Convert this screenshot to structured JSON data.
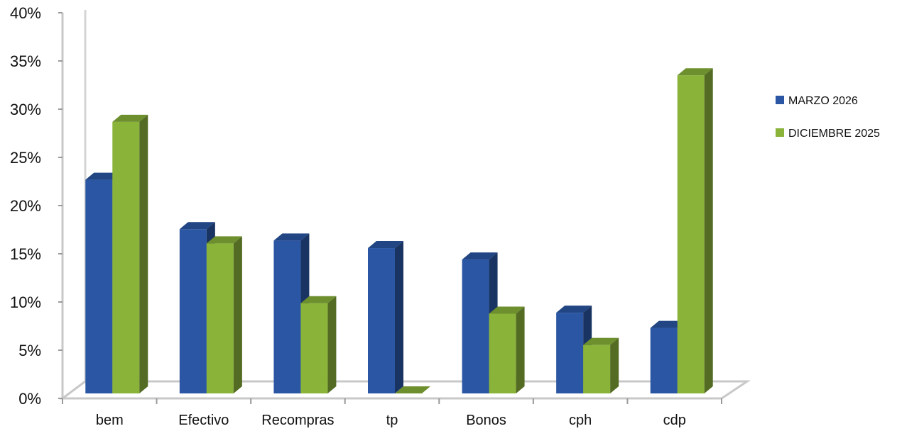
{
  "chart_data": {
    "type": "bar",
    "categories": [
      "bem",
      "Efectivo",
      "Recompras",
      "tp",
      "Bonos",
      "cph",
      "cdp"
    ],
    "series": [
      {
        "name": "MARZO 2026",
        "values": [
          22.5,
          17.3,
          16.1,
          15.3,
          14.1,
          8.5,
          6.9
        ],
        "color": "#2A56A4"
      },
      {
        "name": "DICIEMBRE 2025",
        "values": [
          28.6,
          15.8,
          9.5,
          0.0,
          8.4,
          5.1,
          33.5
        ],
        "color": "#8AB33A"
      }
    ],
    "ylim": [
      0,
      40
    ],
    "yticks": [
      "0%",
      "5%",
      "10%",
      "15%",
      "20%",
      "25%",
      "30%",
      "35%",
      "40%"
    ],
    "grid": false,
    "legend_position": "right",
    "style": "3d-clustered-column"
  }
}
